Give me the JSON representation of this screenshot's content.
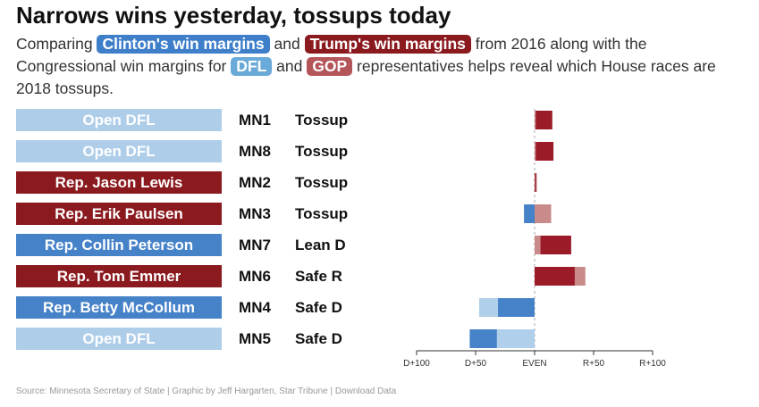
{
  "title": "Narrows wins yesterday, tossups today",
  "subtitle": {
    "t1": "Comparing",
    "clinton": "Clinton's win margins",
    "t2": "and",
    "trump": "Trump's win margins",
    "t3": "from 2016 along with the Congressional win margins for",
    "dfl": "DFL",
    "t4": "and",
    "gop": "GOP",
    "t5": "representatives helps reveal which House races are 2018 tossups."
  },
  "colors": {
    "clinton": "#3f7fc9",
    "trump": "#8b1a1f",
    "dfl": "#6aaad8",
    "gop": "#b45559",
    "open": "#aecde9",
    "dfl_rep": "#4682c8",
    "gop_rep": "#8b1a1f",
    "dfl_light": "#afcfea",
    "gop_light": "#c98a8a",
    "pres_dem": "#4682c8",
    "pres_rep": "#9b1c28"
  },
  "rows": [
    {
      "rep": "Open DFL",
      "district": "MN1",
      "rating": "Tossup",
      "type": "open"
    },
    {
      "rep": "Open DFL",
      "district": "MN8",
      "rating": "Tossup",
      "type": "open"
    },
    {
      "rep": "Rep. Jason Lewis",
      "district": "MN2",
      "rating": "Tossup",
      "type": "gop"
    },
    {
      "rep": "Rep. Erik Paulsen",
      "district": "MN3",
      "rating": "Tossup",
      "type": "gop"
    },
    {
      "rep": "Rep. Collin Peterson",
      "district": "MN7",
      "rating": "Lean D",
      "type": "dfl"
    },
    {
      "rep": "Rep. Tom Emmer",
      "district": "MN6",
      "rating": "Safe R",
      "type": "gop"
    },
    {
      "rep": "Rep. Betty McCollum",
      "district": "MN4",
      "rating": "Safe D",
      "type": "dfl"
    },
    {
      "rep": "Open DFL",
      "district": "MN5",
      "rating": "Safe D",
      "type": "open"
    }
  ],
  "chart_data": {
    "type": "bar",
    "categories": [
      "MN1",
      "MN8",
      "MN2",
      "MN3",
      "MN7",
      "MN6",
      "MN4",
      "MN5"
    ],
    "x_ticks": [
      "D+100",
      "D+50",
      "EVEN",
      "R+50",
      "R+100"
    ],
    "xlim": [
      -100,
      100
    ],
    "series": [
      {
        "name": "Clinton's win margins / Trump's win margins",
        "values": [
          15,
          16,
          1,
          -9,
          31,
          34,
          -31,
          -55
        ]
      },
      {
        "name": "Congressional win margins",
        "values": [
          1,
          1,
          2,
          14,
          5,
          43,
          -47,
          -32
        ]
      }
    ]
  },
  "source": "Source: Minnesota Secretary of State | Graphic by Jeff Hargarten, Star Tribune | Download Data"
}
